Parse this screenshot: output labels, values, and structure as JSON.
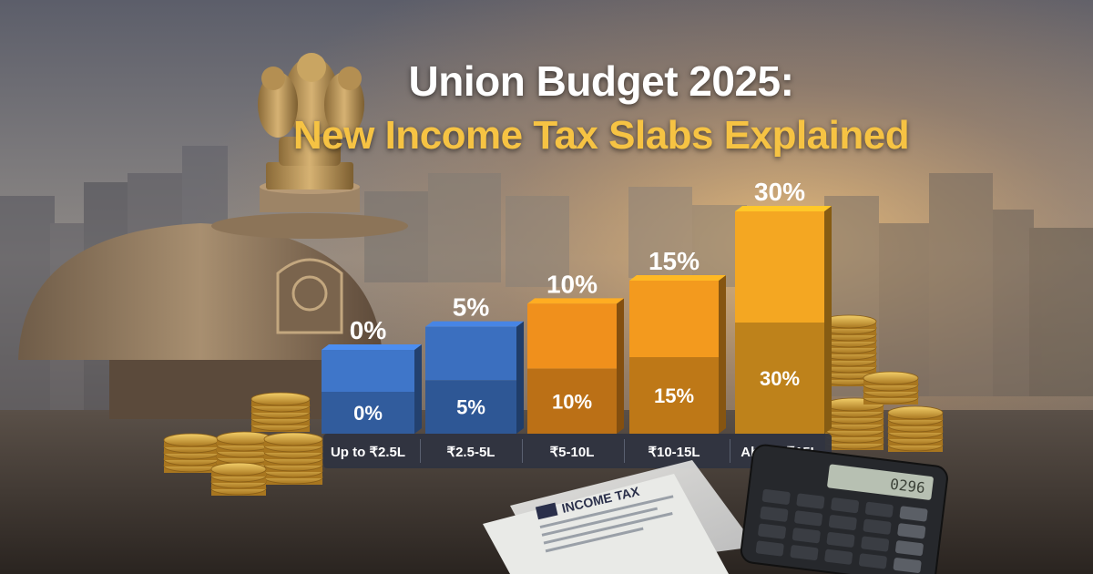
{
  "header": {
    "title": "Union Budget 2025:",
    "subtitle": "New Income Tax Slabs Explained"
  },
  "chart_data": {
    "type": "bar",
    "title": "Union Budget 2025:",
    "subtitle": "New Income Tax Slabs Explained",
    "categories": [
      "Up to ₹2.5L",
      "₹2.5-5L",
      "₹5-10L",
      "₹10-15L",
      "Above ₹15L"
    ],
    "values": [
      0,
      5,
      10,
      15,
      30
    ],
    "value_labels": [
      "0%",
      "5%",
      "10%",
      "15%",
      "30%"
    ],
    "bar_colors": [
      "#3f76c9",
      "#3b6fbf",
      "#f0901c",
      "#f39a1e",
      "#f4a722"
    ],
    "xlabel": "",
    "ylabel": "",
    "grid": false,
    "legend": "none"
  },
  "props": {
    "document_label": "INCOME TAX",
    "calculator_display": "0296"
  },
  "colors": {
    "sky_top": "#6b6d78",
    "sky_glow": "#e9b26a",
    "table": "#3e3832",
    "gold": "#d9a63b",
    "title_white": "#ffffff",
    "title_gold": "#f6c343"
  }
}
